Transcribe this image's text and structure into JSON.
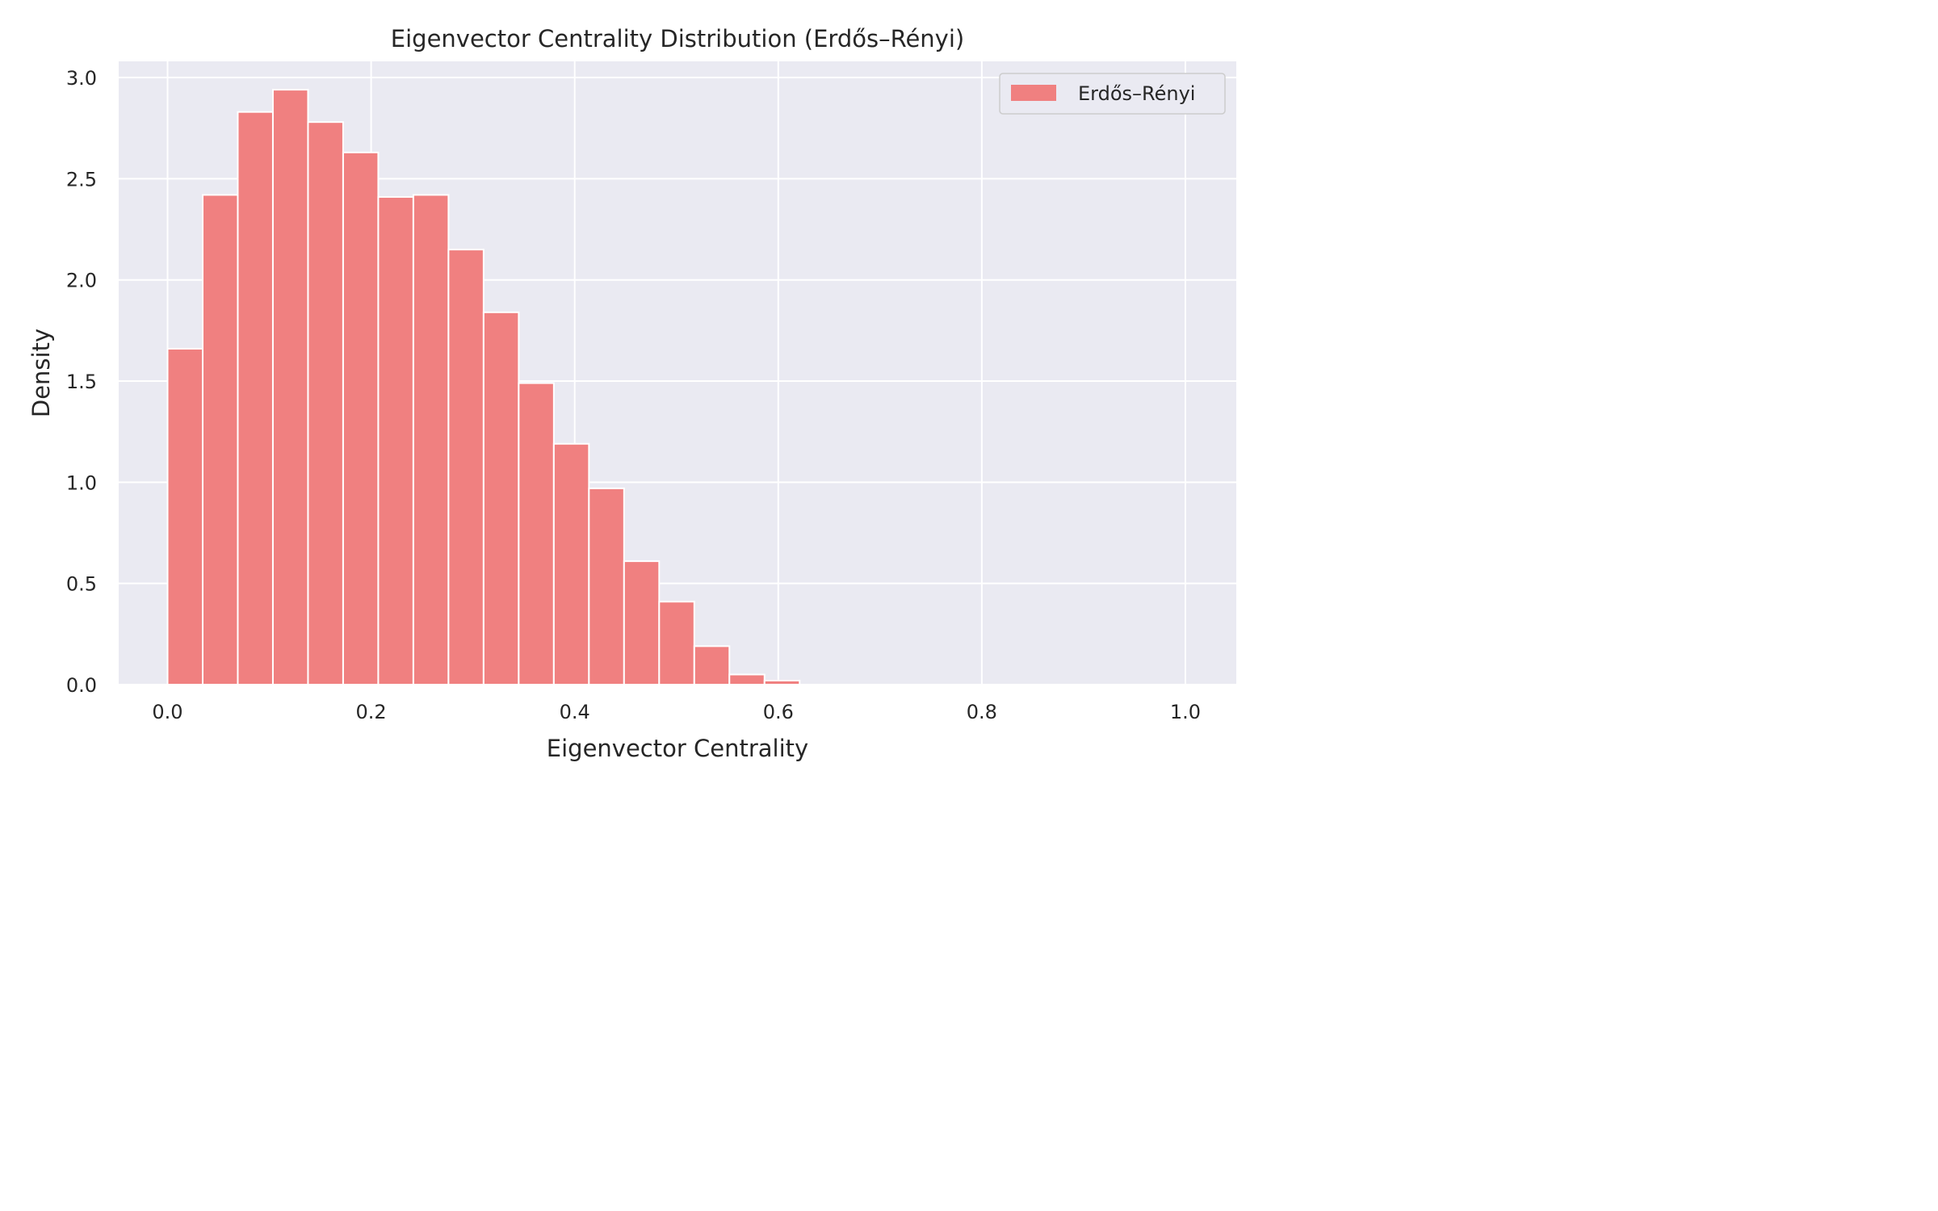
{
  "chart_data": {
    "type": "bar",
    "title": "Eigenvector Centrality Distribution (Erdős–Rényi)",
    "xlabel": "Eigenvector Centrality",
    "ylabel": "Density",
    "xlim": [
      -0.048,
      1.05
    ],
    "ylim": [
      0,
      3.08
    ],
    "xticks": [
      0.0,
      0.2,
      0.4,
      0.6,
      0.8,
      1.0
    ],
    "xtick_labels": [
      "0.0",
      "0.2",
      "0.4",
      "0.6",
      "0.8",
      "1.0"
    ],
    "yticks": [
      0.0,
      0.5,
      1.0,
      1.5,
      2.0,
      2.5,
      3.0
    ],
    "ytick_labels": [
      "0.0",
      "0.5",
      "1.0",
      "1.5",
      "2.0",
      "2.5",
      "3.0"
    ],
    "grid": true,
    "legend_position": "top-right",
    "bin_edges": [
      0.0,
      0.0345,
      0.069,
      0.1035,
      0.138,
      0.1725,
      0.207,
      0.2415,
      0.276,
      0.3105,
      0.345,
      0.3795,
      0.414,
      0.4485,
      0.483,
      0.5175,
      0.552,
      0.5865,
      0.621
    ],
    "series": [
      {
        "name": "Erdős–Rényi",
        "color": "#f08080",
        "values": [
          1.66,
          2.42,
          2.83,
          2.94,
          2.78,
          2.63,
          2.41,
          2.42,
          2.15,
          1.84,
          1.49,
          1.19,
          0.97,
          0.61,
          0.41,
          0.19,
          0.05,
          0.02
        ]
      }
    ]
  }
}
